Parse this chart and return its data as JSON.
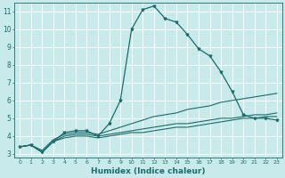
{
  "xlabel": "Humidex (Indice chaleur)",
  "bg_color": "#c8eaea",
  "grid_color": "#a8d8d8",
  "line_color": "#1a6b6b",
  "xlim": [
    -0.5,
    23.5
  ],
  "ylim": [
    2.8,
    11.5
  ],
  "xticks": [
    0,
    1,
    2,
    3,
    4,
    5,
    6,
    7,
    8,
    9,
    10,
    11,
    12,
    13,
    14,
    15,
    16,
    17,
    18,
    19,
    20,
    21,
    22,
    23
  ],
  "yticks": [
    3,
    4,
    5,
    6,
    7,
    8,
    9,
    10,
    11
  ],
  "series1": [
    3.4,
    3.5,
    3.1,
    3.7,
    4.2,
    4.3,
    4.3,
    4.0,
    4.7,
    6.0,
    10.0,
    11.1,
    11.3,
    10.6,
    10.4,
    9.7,
    8.9,
    8.5,
    7.6,
    6.5,
    5.2,
    5.0,
    5.0,
    4.9
  ],
  "series2": [
    3.4,
    3.5,
    3.2,
    3.8,
    4.1,
    4.2,
    4.2,
    4.1,
    4.3,
    4.5,
    4.7,
    4.9,
    5.1,
    5.2,
    5.3,
    5.5,
    5.6,
    5.7,
    5.9,
    6.0,
    6.1,
    6.2,
    6.3,
    6.4
  ],
  "series3": [
    3.4,
    3.5,
    3.1,
    3.7,
    4.0,
    4.1,
    4.1,
    4.0,
    4.1,
    4.2,
    4.3,
    4.4,
    4.5,
    4.6,
    4.7,
    4.7,
    4.8,
    4.9,
    5.0,
    5.0,
    5.1,
    5.2,
    5.2,
    5.3
  ],
  "series4": [
    3.4,
    3.5,
    3.1,
    3.7,
    3.9,
    4.0,
    4.0,
    3.9,
    4.0,
    4.1,
    4.2,
    4.2,
    4.3,
    4.4,
    4.5,
    4.5,
    4.6,
    4.7,
    4.8,
    4.9,
    5.0,
    5.0,
    5.1,
    5.1
  ]
}
